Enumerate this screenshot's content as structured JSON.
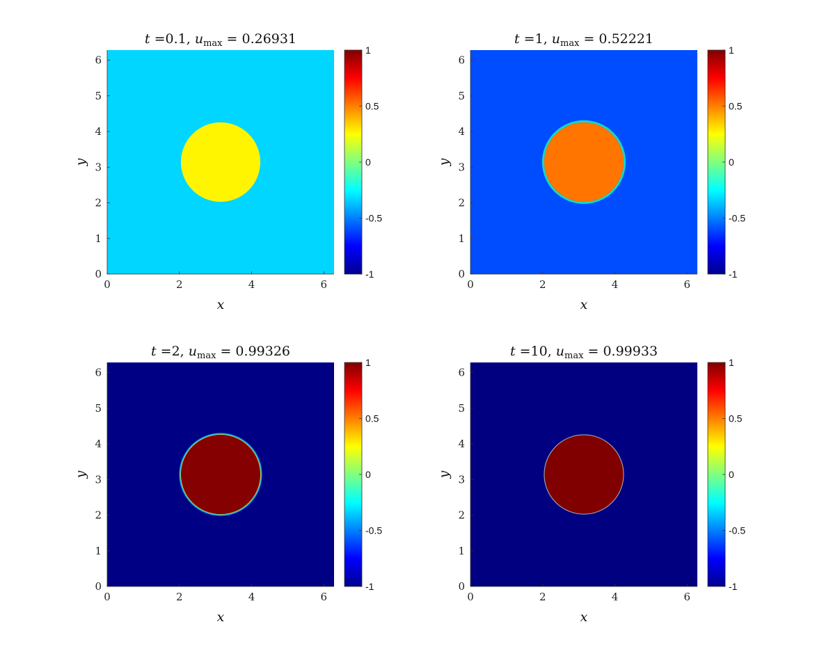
{
  "chart_data": [
    {
      "type": "heatmap",
      "title": {
        "t_value": "0.1",
        "u_max": "0.26931"
      },
      "xlabel": "x",
      "ylabel": "y",
      "xlim": [
        0,
        6.2832
      ],
      "ylim": [
        0,
        6.2832
      ],
      "xticks": [
        "0",
        "2",
        "4",
        "6"
      ],
      "yticks": [
        "0",
        "1",
        "2",
        "3",
        "4",
        "5",
        "6"
      ],
      "field": {
        "background_value": -0.33,
        "inside_value": 0.27,
        "circle_center": [
          3.1416,
          3.1416
        ],
        "circle_radius": 1.1,
        "interface_band": "none"
      },
      "colorbar": {
        "colormap": "jet",
        "clim": [
          -1,
          1
        ],
        "ticks": [
          "1",
          "0.5",
          "0",
          "-0.5",
          "-1"
        ]
      }
    },
    {
      "type": "heatmap",
      "title": {
        "t_value": "1",
        "u_max": "0.52221"
      },
      "xlabel": "x",
      "ylabel": "y",
      "xlim": [
        0,
        6.2832
      ],
      "ylim": [
        0,
        6.2832
      ],
      "xticks": [
        "0",
        "2",
        "4",
        "6"
      ],
      "yticks": [
        "0",
        "1",
        "2",
        "3",
        "4",
        "5",
        "6"
      ],
      "field": {
        "background_value": -0.6,
        "inside_value": 0.52,
        "circle_center": [
          3.1416,
          3.1416
        ],
        "circle_radius": 1.1,
        "interface_band": "wide"
      },
      "colorbar": {
        "colormap": "jet",
        "clim": [
          -1,
          1
        ],
        "ticks": [
          "1",
          "0.5",
          "0",
          "-0.5",
          "-1"
        ]
      }
    },
    {
      "type": "heatmap",
      "title": {
        "t_value": "2",
        "u_max": "0.99326"
      },
      "xlabel": "x",
      "ylabel": "y",
      "xlim": [
        0,
        6.2832
      ],
      "ylim": [
        0,
        6.2832
      ],
      "xticks": [
        "0",
        "2",
        "4",
        "6"
      ],
      "yticks": [
        "0",
        "1",
        "2",
        "3",
        "4",
        "5",
        "6"
      ],
      "field": {
        "background_value": -0.99,
        "inside_value": 0.99,
        "circle_center": [
          3.1416,
          3.1416
        ],
        "circle_radius": 1.1,
        "interface_band": "medium"
      },
      "colorbar": {
        "colormap": "jet",
        "clim": [
          -1,
          1
        ],
        "ticks": [
          "1",
          "0.5",
          "0",
          "-0.5",
          "-1"
        ]
      }
    },
    {
      "type": "heatmap",
      "title": {
        "t_value": "10",
        "u_max": "0.99933"
      },
      "xlabel": "x",
      "ylabel": "y",
      "xlim": [
        0,
        6.2832
      ],
      "ylim": [
        0,
        6.2832
      ],
      "xticks": [
        "0",
        "2",
        "4",
        "6"
      ],
      "yticks": [
        "0",
        "1",
        "2",
        "3",
        "4",
        "5",
        "6"
      ],
      "field": {
        "background_value": -1.0,
        "inside_value": 1.0,
        "circle_center": [
          3.1416,
          3.1416
        ],
        "circle_radius": 1.1,
        "interface_band": "thin"
      },
      "colorbar": {
        "colormap": "jet",
        "clim": [
          -1,
          1
        ],
        "ticks": [
          "1",
          "0.5",
          "0",
          "-0.5",
          "-1"
        ]
      }
    }
  ]
}
